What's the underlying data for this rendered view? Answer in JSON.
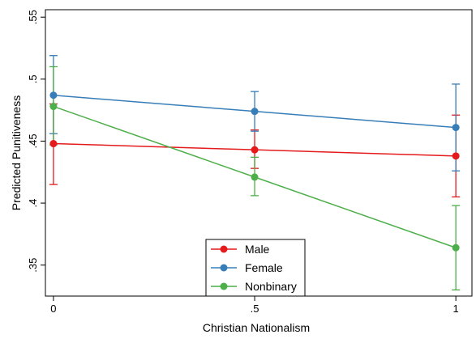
{
  "chart_data": {
    "type": "line",
    "title": "",
    "xlabel": "Christian Nationalism",
    "ylabel": "Predicted Punitiveness",
    "x": [
      0,
      0.5,
      1
    ],
    "x_tick_labels": [
      "0",
      ".5",
      "1"
    ],
    "y_ticks": [
      0.35,
      0.4,
      0.45,
      0.5,
      0.55
    ],
    "y_tick_labels": [
      ".35",
      ".4",
      ".45",
      ".5",
      ".55"
    ],
    "xlim": [
      -0.02,
      1.04
    ],
    "ylim": [
      0.325,
      0.556
    ],
    "grid": false,
    "legend_position": "bottom-center",
    "series": [
      {
        "name": "Male",
        "color": "#e41a1c",
        "values": [
          0.448,
          0.443,
          0.438
        ],
        "ci_low": [
          0.415,
          0.428,
          0.405
        ],
        "ci_high": [
          0.48,
          0.459,
          0.471
        ]
      },
      {
        "name": "Female",
        "color": "#377eb8",
        "values": [
          0.487,
          0.474,
          0.461
        ],
        "ci_low": [
          0.456,
          0.458,
          0.426
        ],
        "ci_high": [
          0.519,
          0.49,
          0.496
        ]
      },
      {
        "name": "Nonbinary",
        "color": "#4daf4a",
        "values": [
          0.478,
          0.421,
          0.364
        ],
        "ci_low": [
          0.447,
          0.406,
          0.33
        ],
        "ci_high": [
          0.51,
          0.437,
          0.398
        ]
      }
    ]
  }
}
